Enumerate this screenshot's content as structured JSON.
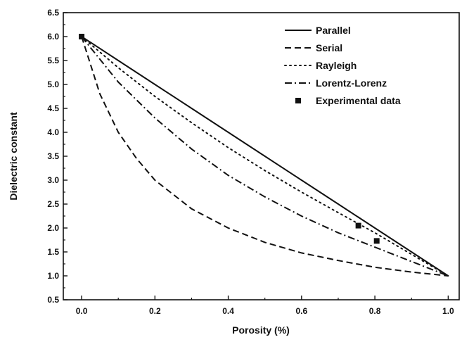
{
  "chart_data": {
    "type": "line",
    "xlabel": "Porosity (%)",
    "ylabel": "Dielectric constant",
    "xlim": [
      -0.05,
      1.03
    ],
    "ylim": [
      0.5,
      6.5
    ],
    "xticks": [
      "0.0",
      "0.2",
      "0.4",
      "0.6",
      "0.8",
      "1.0"
    ],
    "yticks": [
      "0.5",
      "1.0",
      "1.5",
      "2.0",
      "2.5",
      "3.0",
      "3.5",
      "4.0",
      "4.5",
      "5.0",
      "5.5",
      "6.0",
      "6.5"
    ],
    "grid": false,
    "legend_position": "top-right",
    "legend": [
      {
        "label": "Parallel",
        "style": "solid"
      },
      {
        "label": "Serial",
        "style": "dashed"
      },
      {
        "label": "Rayleigh",
        "style": "dotted"
      },
      {
        "label": "Lorentz-Lorenz",
        "style": "dashdot"
      },
      {
        "label": "Experimental data",
        "style": "marker"
      }
    ],
    "series": [
      {
        "name": "Parallel",
        "style": "solid",
        "x": [
          0,
          0.1,
          0.2,
          0.3,
          0.4,
          0.5,
          0.6,
          0.7,
          0.8,
          0.9,
          1.0
        ],
        "y": [
          6.0,
          5.5,
          5.0,
          4.5,
          4.0,
          3.5,
          3.0,
          2.5,
          2.0,
          1.5,
          1.0
        ]
      },
      {
        "name": "Serial",
        "style": "dashed",
        "x": [
          0,
          0.05,
          0.1,
          0.15,
          0.2,
          0.3,
          0.4,
          0.5,
          0.6,
          0.7,
          0.8,
          0.9,
          1.0
        ],
        "y": [
          6.0,
          4.8,
          4.0,
          3.45,
          3.0,
          2.4,
          2.0,
          1.7,
          1.48,
          1.32,
          1.18,
          1.08,
          1.0
        ]
      },
      {
        "name": "Rayleigh",
        "style": "dotted",
        "x": [
          0,
          0.1,
          0.2,
          0.3,
          0.4,
          0.5,
          0.6,
          0.7,
          0.8,
          0.9,
          1.0
        ],
        "y": [
          6.0,
          5.35,
          4.75,
          4.2,
          3.68,
          3.2,
          2.75,
          2.32,
          1.9,
          1.45,
          1.0
        ]
      },
      {
        "name": "Lorentz-Lorenz",
        "style": "dashdot",
        "x": [
          0,
          0.1,
          0.2,
          0.3,
          0.4,
          0.5,
          0.6,
          0.7,
          0.8,
          0.9,
          1.0
        ],
        "y": [
          6.0,
          5.05,
          4.3,
          3.65,
          3.1,
          2.65,
          2.25,
          1.9,
          1.6,
          1.3,
          1.0
        ]
      },
      {
        "name": "Experimental data",
        "style": "marker",
        "x": [
          0.0,
          0.755,
          0.805
        ],
        "y": [
          6.0,
          2.05,
          1.73
        ]
      }
    ]
  },
  "colors": {
    "ink": "#111111",
    "background": "#ffffff"
  }
}
